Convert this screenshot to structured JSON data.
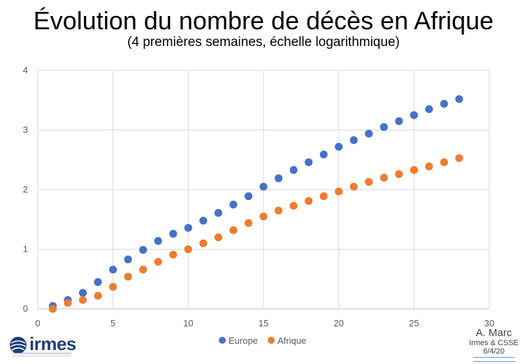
{
  "chart_data": {
    "type": "scatter",
    "title": "Évolution du nombre de décès en Afrique",
    "subtitle": "(4 premières semaines, échelle logarithmique)",
    "xlim": [
      0,
      30
    ],
    "ylim": [
      0,
      4
    ],
    "xticks": [
      "0",
      "5",
      "10",
      "15",
      "20",
      "25",
      "30"
    ],
    "yticks": [
      "0",
      "1",
      "2",
      "3",
      "4"
    ],
    "grid": true,
    "legend_position": "bottom",
    "series": [
      {
        "name": "Europe",
        "color": "#4472C4",
        "x": [
          1,
          2,
          3,
          4,
          5,
          6,
          7,
          8,
          9,
          10,
          11,
          12,
          13,
          14,
          15,
          16,
          17,
          18,
          19,
          20,
          21,
          22,
          23,
          24,
          25,
          26,
          27,
          28
        ],
        "y": [
          0.05,
          0.15,
          0.27,
          0.45,
          0.66,
          0.83,
          0.99,
          1.14,
          1.26,
          1.36,
          1.48,
          1.61,
          1.75,
          1.89,
          2.05,
          2.19,
          2.33,
          2.46,
          2.59,
          2.72,
          2.83,
          2.94,
          3.05,
          3.15,
          3.25,
          3.35,
          3.44,
          3.52
        ]
      },
      {
        "name": "Afrique",
        "color": "#ED7D31",
        "x": [
          1,
          2,
          3,
          4,
          5,
          6,
          7,
          8,
          9,
          10,
          11,
          12,
          13,
          14,
          15,
          16,
          17,
          18,
          19,
          20,
          21,
          22,
          23,
          24,
          25,
          26,
          27,
          28
        ],
        "y": [
          0.0,
          0.1,
          0.15,
          0.22,
          0.37,
          0.54,
          0.66,
          0.79,
          0.91,
          1.0,
          1.1,
          1.2,
          1.32,
          1.44,
          1.55,
          1.65,
          1.73,
          1.81,
          1.89,
          1.97,
          2.05,
          2.13,
          2.2,
          2.26,
          2.33,
          2.39,
          2.46,
          2.53
        ]
      }
    ]
  },
  "branding": {
    "logo_text": "irmes",
    "author": "A. Marc",
    "source": "Irmes & CSSE",
    "date": "6/4/20"
  }
}
